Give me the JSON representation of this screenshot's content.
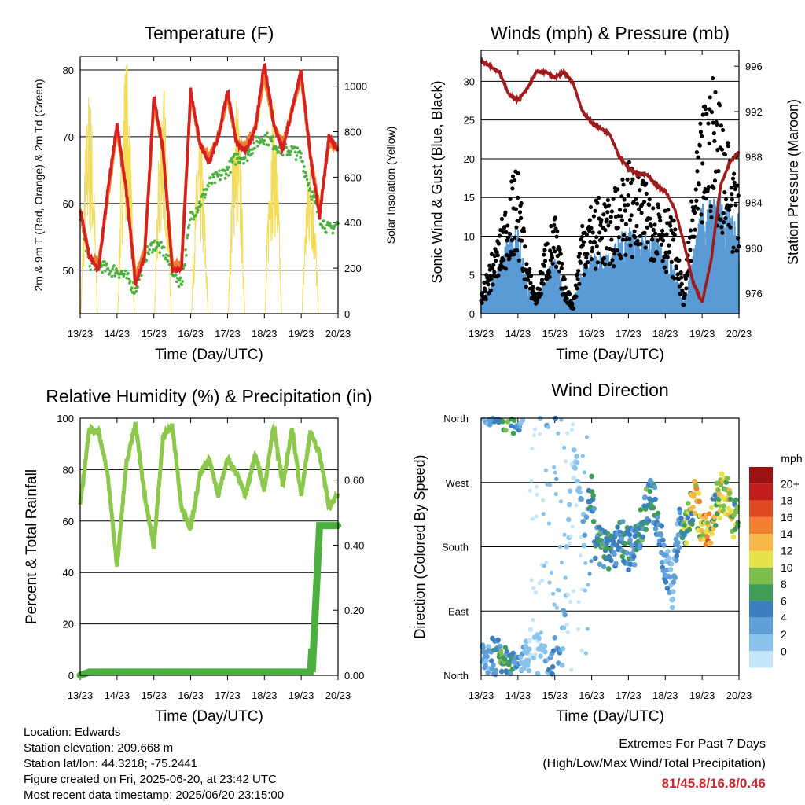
{
  "x_ticks": [
    "13/23",
    "14/23",
    "15/23",
    "16/23",
    "17/23",
    "18/23",
    "19/23",
    "20/23"
  ],
  "panels": {
    "temperature": {
      "title": "Temperature (F)",
      "xlabel": "Time (Day/UTC)",
      "ylabel_left": "2m & 9m T (Red, Orange) & 2m Td (Green)",
      "ylabel_right": "Solar Insolation (Yellow)",
      "yticks_left": [
        "50",
        "60",
        "70",
        "80"
      ],
      "yticks_right": [
        "0",
        "200",
        "400",
        "600",
        "800",
        "1000"
      ]
    },
    "winds": {
      "title": "Winds (mph) & Pressure (mb)",
      "xlabel": "Time (Day/UTC)",
      "ylabel_left": "Sonic Wind & Gust (Blue, Black)",
      "ylabel_right": "Station Pressure (Maroon)",
      "yticks_left": [
        "0",
        "5",
        "10",
        "15",
        "20",
        "25",
        "30"
      ],
      "yticks_right": [
        "976",
        "980",
        "984",
        "988",
        "992",
        "996"
      ]
    },
    "humidity": {
      "title": "Relative Humidity (%) & Precipitation (in)",
      "xlabel": "Time (Day/UTC)",
      "ylabel_left": "Percent & Total Rainfall",
      "yticks_left": [
        "0",
        "20",
        "40",
        "60",
        "80",
        "100"
      ],
      "yticks_right": [
        "0.00",
        "0.20",
        "0.40",
        "0.60"
      ]
    },
    "direction": {
      "title": "Wind Direction",
      "xlabel": "Time (Day/UTC)",
      "ylabel_left": "Direction (Colored By Speed)",
      "yticks_left": [
        "North",
        "East",
        "South",
        "West",
        "North"
      ],
      "legend_title": "mph",
      "legend_labels": [
        "0",
        "2",
        "4",
        "6",
        "8",
        "10",
        "12",
        "14",
        "16",
        "18",
        "20+"
      ]
    }
  },
  "footer": {
    "location": "Location: Edwards",
    "elevation": "Station elevation: 209.668 m",
    "latlon": "Station lat/lon: 44.3218; -75.2441",
    "created": "Figure created on Fri, 2025-06-20, at 23:42 UTC",
    "recent": "Most recent data timestamp: 2025/06/20 23:15:00",
    "extremes_title": "Extremes For Past 7 Days",
    "extremes_sub": "(High/Low/Max Wind/Total Precipitation)",
    "extremes_values": "81/45.8/16.8/0.46"
  },
  "colors": {
    "temp_2m": "#d42020",
    "temp_9m": "#f08030",
    "dewpoint": "#4bb040",
    "solar": "#f3dc5a",
    "wind": "#5b9bd5",
    "gust": "#000000",
    "pressure": "#a01c1c",
    "rh": "#8cc84b",
    "precip": "#4bb040",
    "speed_scale": [
      "#c5e6f8",
      "#8ac4ec",
      "#5d9fd6",
      "#3b7fc0",
      "#3f9d58",
      "#7dbf4a",
      "#e5e24a",
      "#f9b74a",
      "#f27f32",
      "#e04a22",
      "#c21c1c",
      "#9b1212"
    ]
  },
  "chart_data": [
    {
      "type": "line",
      "title": "Temperature (F)",
      "xlabel": "Time (Day/UTC)",
      "ylabel": "2m & 9m T (Red, Orange) & 2m Td (Green)",
      "y2label": "Solar Insolation (Yellow)",
      "ylim": [
        43.5,
        82
      ],
      "y2lim": [
        0,
        1130
      ],
      "x": [
        13.0,
        13.25,
        13.5,
        13.75,
        14.0,
        14.25,
        14.5,
        14.75,
        15.0,
        15.25,
        15.5,
        15.75,
        16.0,
        16.25,
        16.5,
        16.75,
        17.0,
        17.25,
        17.5,
        17.75,
        18.0,
        18.25,
        18.5,
        18.75,
        19.0,
        19.25,
        19.5,
        19.75,
        20.0
      ],
      "series": [
        {
          "name": "2m T",
          "values": [
            59,
            52,
            50,
            62,
            72,
            62,
            48,
            52,
            76,
            68,
            50,
            50,
            77,
            69,
            66,
            70,
            77,
            69,
            68,
            71,
            81,
            72,
            68,
            74,
            80,
            67,
            58,
            70,
            68
          ]
        },
        {
          "name": "9m T",
          "values": [
            59,
            52,
            51,
            61,
            71,
            62,
            49,
            53,
            75,
            68,
            51,
            51,
            76,
            69,
            67,
            70,
            76,
            69,
            69,
            71,
            79,
            72,
            69,
            74,
            79,
            67,
            59,
            69,
            68
          ]
        },
        {
          "name": "2m Td",
          "values": [
            58,
            51,
            51,
            50,
            50,
            49,
            47,
            52,
            54,
            53,
            50,
            48,
            58,
            60,
            63,
            64,
            65,
            67,
            67,
            69,
            70,
            69,
            68,
            68,
            67,
            62,
            58,
            56,
            57
          ]
        },
        {
          "name": "Solar Insolation",
          "values": [
            0,
            400,
            850,
            420,
            0,
            380,
            1000,
            600,
            0,
            1100,
            900,
            300,
            0,
            950,
            650,
            500,
            0,
            1000,
            850,
            400,
            0,
            950,
            800,
            300,
            0,
            800,
            600,
            1050,
            0
          ]
        }
      ]
    },
    {
      "type": "scatter",
      "title": "Winds (mph) & Pressure (mb)",
      "xlabel": "Time (Day/UTC)",
      "ylabel": "Sonic Wind & Gust (Blue, Black)",
      "y2label": "Station Pressure (Maroon)",
      "ylim": [
        0,
        34
      ],
      "y2lim": [
        974.2,
        997.4
      ],
      "x": [
        13.0,
        13.25,
        13.5,
        13.75,
        14.0,
        14.25,
        14.5,
        14.75,
        15.0,
        15.25,
        15.5,
        15.75,
        16.0,
        16.25,
        16.5,
        16.75,
        17.0,
        17.25,
        17.5,
        17.75,
        18.0,
        18.25,
        18.5,
        18.75,
        19.0,
        19.25,
        19.5,
        19.75,
        20.0
      ],
      "series": [
        {
          "name": "Sonic Wind",
          "values": [
            1,
            3,
            5,
            8,
            9,
            3,
            1,
            4,
            6,
            2,
            1,
            5,
            6,
            6,
            6,
            8,
            9,
            8,
            8,
            8,
            6,
            5,
            1,
            6,
            11,
            12,
            12,
            10,
            10
          ]
        },
        {
          "name": "Gust",
          "values": [
            2,
            6,
            9,
            14,
            16,
            6,
            2,
            8,
            11,
            4,
            1,
            11,
            12,
            13,
            12,
            15,
            17,
            15,
            15,
            15,
            12,
            10,
            2,
            14,
            22,
            26,
            24,
            18,
            17
          ]
        },
        {
          "name": "Station Pressure",
          "values": [
            996.5,
            996,
            995.5,
            993.5,
            993,
            994,
            995.5,
            995.5,
            995,
            995.5,
            994.5,
            992,
            991,
            990.5,
            990,
            988,
            987,
            986.5,
            986.5,
            985.5,
            985,
            983.5,
            980.5,
            977,
            975.2,
            979,
            985.5,
            987.5,
            988.5
          ]
        }
      ]
    },
    {
      "type": "line",
      "title": "Relative Humidity (%) & Precipitation (in)",
      "xlabel": "Time (Day/UTC)",
      "ylabel": "Percent & Total Rainfall",
      "ylim": [
        0,
        100
      ],
      "y2lim": [
        0,
        0.79
      ],
      "x": [
        13.0,
        13.25,
        13.5,
        13.75,
        14.0,
        14.25,
        14.5,
        14.75,
        15.0,
        15.25,
        15.5,
        15.75,
        16.0,
        16.25,
        16.5,
        16.75,
        17.0,
        17.25,
        17.5,
        17.75,
        18.0,
        18.25,
        18.5,
        18.75,
        19.0,
        19.25,
        19.5,
        19.75,
        20.0
      ],
      "series": [
        {
          "name": "Relative Humidity",
          "values": [
            66,
            96,
            95,
            78,
            42,
            82,
            98,
            70,
            50,
            93,
            97,
            65,
            57,
            78,
            84,
            70,
            84,
            78,
            70,
            86,
            72,
            97,
            74,
            96,
            70,
            95,
            86,
            66,
            70
          ]
        },
        {
          "name": "Total Precipitation",
          "values": [
            0,
            0.01,
            0.01,
            0.01,
            0.01,
            0.01,
            0.01,
            0.01,
            0.01,
            0.01,
            0.01,
            0.01,
            0.01,
            0.01,
            0.01,
            0.01,
            0.01,
            0.01,
            0.01,
            0.01,
            0.01,
            0.01,
            0.01,
            0.01,
            0.01,
            0.01,
            0.46,
            0.46,
            0.46
          ]
        }
      ]
    },
    {
      "type": "scatter",
      "title": "Wind Direction",
      "xlabel": "Time (Day/UTC)",
      "ylabel": "Direction (Colored By Speed)",
      "ylim": [
        0,
        360
      ],
      "yticks": [
        0,
        90,
        180,
        270,
        360
      ],
      "ytick_labels": [
        "North",
        "East",
        "South",
        "West",
        "North"
      ],
      "legend_title": "mph",
      "legend_labels": [
        "0",
        "2",
        "4",
        "6",
        "8",
        "10",
        "12",
        "14",
        "16",
        "18",
        "20+"
      ],
      "x": [
        13.05,
        13.2,
        13.35,
        13.45,
        13.6,
        13.75,
        13.9,
        14.05,
        14.2,
        14.35,
        14.5,
        14.6,
        14.75,
        14.9,
        15.05,
        15.2,
        15.35,
        15.5,
        15.65,
        15.8,
        15.9,
        16.0,
        16.1,
        16.25,
        16.4,
        16.55,
        16.7,
        16.85,
        17.0,
        17.15,
        17.3,
        17.45,
        17.6,
        17.75,
        17.9,
        18.05,
        18.2,
        18.35,
        18.5,
        18.65,
        18.8,
        18.95,
        19.1,
        19.25,
        19.4,
        19.55,
        19.7,
        19.85,
        19.95
      ],
      "series": [
        {
          "name": "Direction",
          "values": [
            20,
            15,
            25,
            20,
            12,
            10,
            5,
            10,
            30,
            40,
            30,
            25,
            20,
            20,
            25,
            40,
            180,
            310,
            270,
            200,
            240,
            260,
            190,
            180,
            175,
            180,
            185,
            190,
            175,
            180,
            200,
            230,
            245,
            230,
            180,
            150,
            120,
            200,
            210,
            220,
            250,
            220,
            200,
            215,
            240,
            260,
            250,
            220,
            230
          ]
        },
        {
          "name": "Speed",
          "values": [
            3,
            4,
            5,
            6,
            8,
            7,
            6,
            4,
            2,
            1,
            1,
            2,
            3,
            5,
            6,
            3,
            2,
            1,
            2,
            4,
            5,
            6,
            6,
            7,
            7,
            6,
            5,
            6,
            6,
            5,
            6,
            7,
            7,
            6,
            5,
            4,
            3,
            5,
            8,
            10,
            11,
            12,
            14,
            12,
            9,
            11,
            12,
            10,
            9
          ]
        }
      ]
    }
  ]
}
